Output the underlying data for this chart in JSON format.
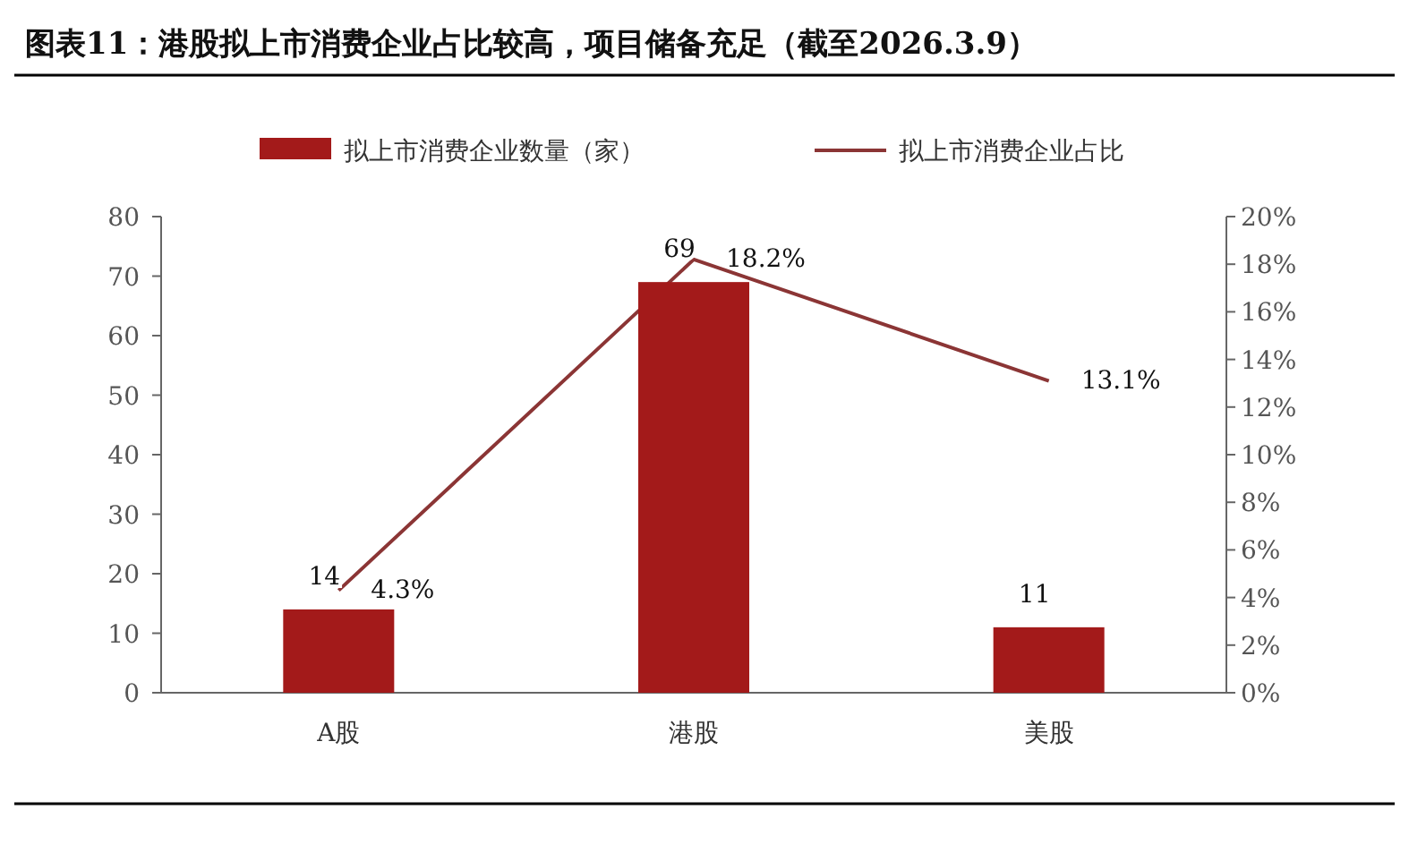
{
  "chart_data": {
    "type": "bar",
    "title": "图表11：港股拟上市消费企业占比较高，项目储备充足（截至2026.3.9）",
    "categories": [
      "A股",
      "港股",
      "美股"
    ],
    "series": [
      {
        "name": "拟上市消费企业数量（家）",
        "color": "#a31a1a",
        "values": [
          14,
          69,
          11
        ],
        "value_labels": [
          "14",
          "69",
          "11"
        ]
      },
      {
        "name": "拟上市消费企业占比",
        "type": "line",
        "axis": "y2",
        "color": "#8b3535",
        "values": [
          4.3,
          18.2,
          13.1
        ],
        "value_labels": [
          "4.3%",
          "18.2%",
          "13.1%"
        ]
      }
    ],
    "ylim": [
      0,
      80
    ],
    "yticks": [
      0,
      10,
      20,
      30,
      40,
      50,
      60,
      70,
      80
    ],
    "y2lim": [
      0,
      20
    ],
    "y2ticks": [
      {
        "value": 0,
        "label": "0%"
      },
      {
        "value": 2,
        "label": "2%"
      },
      {
        "value": 4,
        "label": "4%"
      },
      {
        "value": 6,
        "label": "6%"
      },
      {
        "value": 8,
        "label": "8%"
      },
      {
        "value": 10,
        "label": "10%"
      },
      {
        "value": 12,
        "label": "12%"
      },
      {
        "value": 14,
        "label": "14%"
      },
      {
        "value": 16,
        "label": "16%"
      },
      {
        "value": 18,
        "label": "18%"
      },
      {
        "value": 20,
        "label": "20%"
      }
    ],
    "legend": "top",
    "grid": false,
    "marker": "none"
  }
}
